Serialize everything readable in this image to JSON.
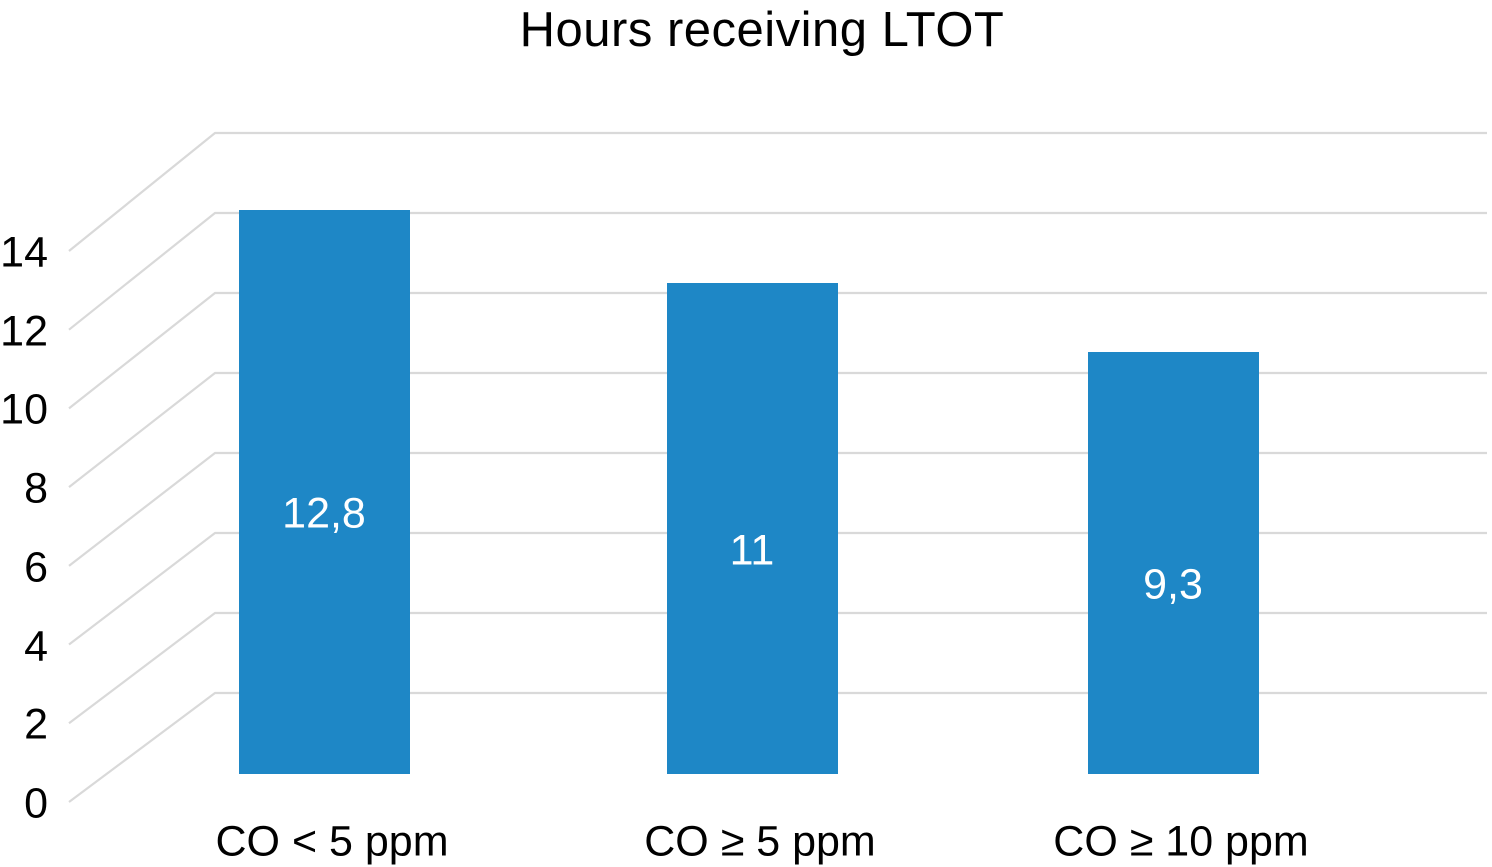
{
  "title": "Hours receiving LTOT",
  "chart_data": {
    "type": "bar",
    "title": "Hours receiving LTOT",
    "categories": [
      "CO < 5 ppm",
      "CO ≥ 5 ppm",
      "CO ≥ 10 ppm"
    ],
    "values": [
      12.8,
      11,
      9.3
    ],
    "value_labels": [
      "12,8",
      "11",
      "9,3"
    ],
    "series": [
      {
        "name": "Hours receiving LTOT",
        "values": [
          12.8,
          11,
          9.3
        ]
      }
    ],
    "xlabel": "",
    "ylabel": "",
    "yticks": [
      0,
      2,
      4,
      6,
      8,
      10,
      12,
      14
    ],
    "ytick_labels": [
      "0",
      "2",
      "4",
      "6",
      "8",
      "10",
      "12",
      "14"
    ],
    "ylim": [
      0,
      14
    ],
    "grid": "horizontal, 3D-perspective (diagonal side segment + horizontal back-wall line)",
    "legend_position": "none",
    "style": {
      "bar_color": "#1e87c6",
      "gridline_color": "#d9d9d9",
      "value_label_color": "#ffffff",
      "axis_text_color": "#000000",
      "title_color": "#000000",
      "background_color": "#ffffff"
    }
  }
}
